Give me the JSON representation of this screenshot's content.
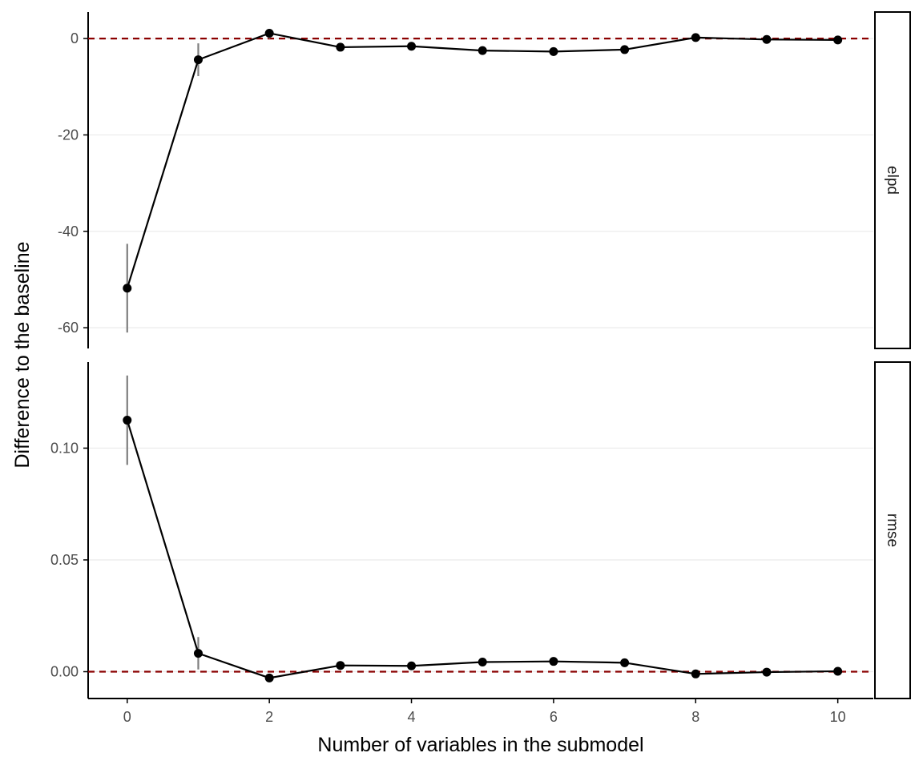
{
  "chart_data": {
    "type": "line",
    "xlabel": "Number of variables in the submodel",
    "ylabel": "Difference to the baseline",
    "x": [
      0,
      1,
      2,
      3,
      4,
      5,
      6,
      7,
      8,
      9,
      10
    ],
    "x_ticks": [
      0,
      2,
      4,
      6,
      8,
      10
    ],
    "x_tick_labels": [
      "0",
      "2",
      "4",
      "6",
      "8",
      "10"
    ],
    "xlim": [
      -0.55,
      10.5
    ],
    "reference_line": {
      "y": 0,
      "color": "#8b0000",
      "style": "dashed"
    },
    "grid": "horizontal-major",
    "panels": [
      {
        "strip_label": "elpd",
        "ylim": [
          -64.3,
          5.5
        ],
        "y_ticks": [
          0,
          -20,
          -40,
          -60
        ],
        "y_tick_labels": [
          "0",
          "-20",
          "-40",
          "-60"
        ],
        "values": [
          -51.8,
          -4.4,
          1.1,
          -1.8,
          -1.6,
          -2.5,
          -2.7,
          -2.3,
          0.2,
          -0.2,
          -0.3
        ],
        "lower": [
          -61.0,
          -7.8,
          0.0,
          -2.6,
          -2.4,
          -3.3,
          -3.6,
          -3.1,
          -0.3,
          -0.6,
          -0.7
        ],
        "upper": [
          -42.6,
          -1.0,
          2.0,
          -1.0,
          -0.8,
          -1.7,
          -1.8,
          -1.5,
          0.7,
          0.2,
          0.1
        ]
      },
      {
        "strip_label": "rmse",
        "ylim": [
          -0.012,
          0.1385
        ],
        "y_ticks": [
          0.0,
          0.05,
          0.1
        ],
        "y_tick_labels": [
          "0.00",
          "0.05",
          "0.10"
        ],
        "values": [
          0.1125,
          0.0082,
          -0.0028,
          0.0028,
          0.0026,
          0.0043,
          0.0046,
          0.004,
          -0.001,
          -0.0002,
          0.0002
        ],
        "lower": [
          0.0925,
          0.001,
          -0.0035,
          0.0022,
          0.002,
          0.0036,
          0.0039,
          0.0033,
          -0.0016,
          -0.0008,
          -0.0004
        ],
        "upper": [
          0.1325,
          0.0155,
          -0.0021,
          0.0034,
          0.0032,
          0.005,
          0.0053,
          0.0047,
          -0.0004,
          0.0004,
          0.0008
        ]
      }
    ],
    "colors": {
      "line": "#000000",
      "point": "#000000",
      "errorbar": "#7f7f7f",
      "grid": "#ebebeb",
      "axis": "#000000",
      "tick_label": "#4d4d4d"
    }
  }
}
